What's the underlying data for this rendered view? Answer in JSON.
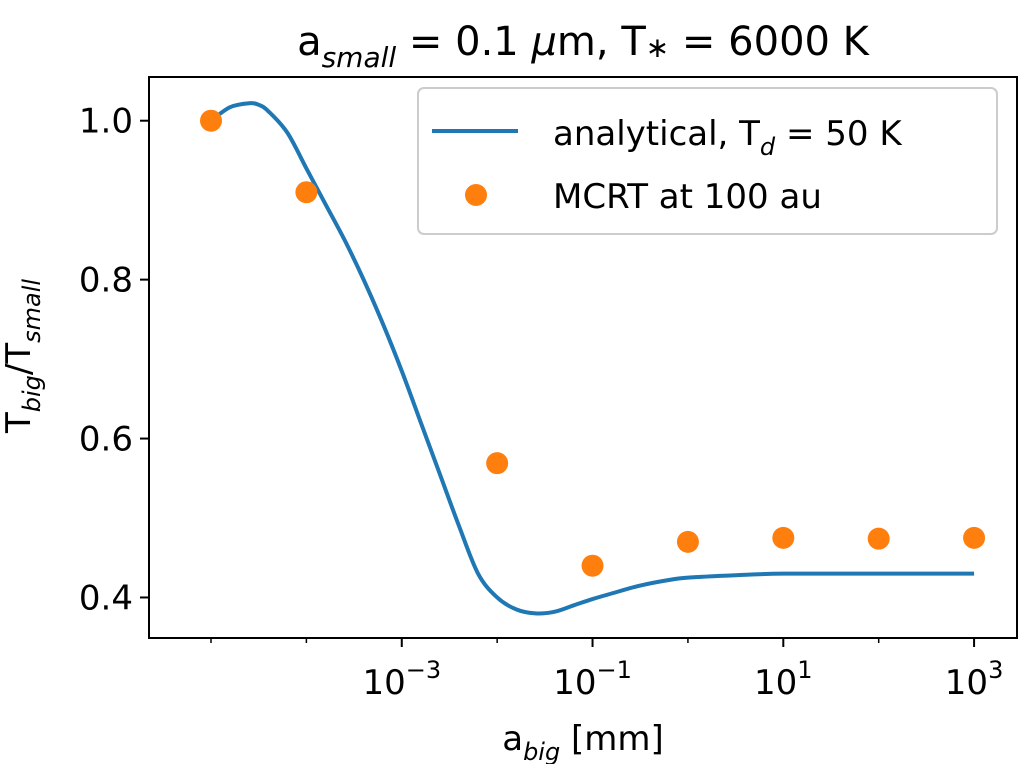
{
  "chart_data": {
    "type": "line+scatter",
    "title": {
      "prefix": "a",
      "prefix_sub": "small",
      "middle": " = 0.1 ",
      "mu": "μ",
      "middle2": "m, T",
      "star": "∗",
      "suffix": " = 6000 K"
    },
    "xlabel": {
      "main": "a",
      "sub": "big",
      "suffix": " [mm]"
    },
    "ylabel": {
      "main1": "T",
      "sub1": "big",
      "slash": "/T",
      "sub2": "small"
    },
    "x_scale": "log",
    "xlim_log10": [
      -5.65,
      3.45
    ],
    "ylim": [
      0.349,
      1.055
    ],
    "x_ticks": [
      {
        "base": "10",
        "exp": "−3",
        "log10": -3
      },
      {
        "base": "10",
        "exp": "−1",
        "log10": -1
      },
      {
        "base": "10",
        "exp": "1",
        "log10": 1
      },
      {
        "base": "10",
        "exp": "3",
        "log10": 3
      }
    ],
    "y_ticks": [
      {
        "label": "0.4",
        "value": 0.4
      },
      {
        "label": "0.6",
        "value": 0.6
      },
      {
        "label": "0.8",
        "value": 0.8
      },
      {
        "label": "1.0",
        "value": 1.0
      }
    ],
    "series": [
      {
        "name": "analytical, T_d = 50 K",
        "kind": "line",
        "color": "#1f77b4",
        "points": [
          [
            -5,
            1.0
          ],
          [
            -4.8,
            1.017
          ],
          [
            -4.6,
            1.022
          ],
          [
            -4.5,
            1.02
          ],
          [
            -4.4,
            1.012
          ],
          [
            -4.2,
            0.985
          ],
          [
            -4.0,
            0.94
          ],
          [
            -3.8,
            0.895
          ],
          [
            -3.6,
            0.85
          ],
          [
            -3.4,
            0.8
          ],
          [
            -3.2,
            0.745
          ],
          [
            -3.0,
            0.685
          ],
          [
            -2.8,
            0.62
          ],
          [
            -2.6,
            0.555
          ],
          [
            -2.4,
            0.49
          ],
          [
            -2.2,
            0.43
          ],
          [
            -2.0,
            0.4
          ],
          [
            -1.8,
            0.385
          ],
          [
            -1.6,
            0.38
          ],
          [
            -1.4,
            0.382
          ],
          [
            -1.2,
            0.39
          ],
          [
            -1.0,
            0.398
          ],
          [
            -0.8,
            0.405
          ],
          [
            -0.5,
            0.415
          ],
          [
            -0.2,
            0.422
          ],
          [
            0.0,
            0.425
          ],
          [
            0.5,
            0.428
          ],
          [
            1.0,
            0.43
          ],
          [
            2.0,
            0.43
          ],
          [
            3.0,
            0.43
          ]
        ]
      },
      {
        "name": "MCRT at 100 au",
        "kind": "scatter",
        "color": "#ff7f0e",
        "points": [
          [
            -5,
            1.0
          ],
          [
            -4,
            0.91
          ],
          [
            -2,
            0.569
          ],
          [
            -1,
            0.44
          ],
          [
            0,
            0.47
          ],
          [
            1,
            0.475
          ],
          [
            2,
            0.474
          ],
          [
            3,
            0.475
          ]
        ]
      }
    ],
    "legend": {
      "placement": "top-right",
      "line_label": {
        "main": "analytical, T",
        "sub": "d",
        "suffix": " = 50 K"
      },
      "scatter_label": "MCRT at 100 au"
    }
  }
}
